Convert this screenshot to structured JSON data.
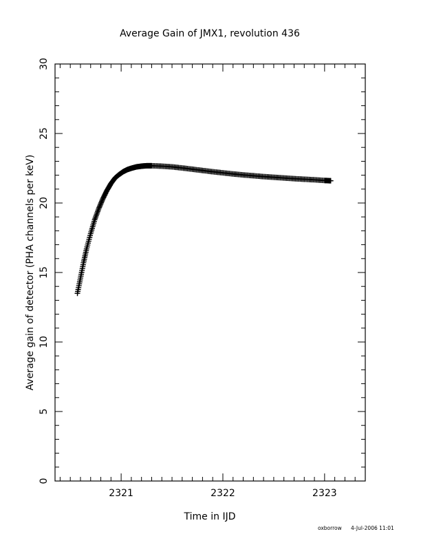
{
  "chart_data": {
    "type": "scatter",
    "title": "Average Gain of JMX1, revolution 436",
    "xlabel": "Time in IJD",
    "ylabel": "Average gain of detector (PHA channels per keV)",
    "xlim": [
      2320.35,
      2323.4
    ],
    "ylim": [
      0,
      30
    ],
    "x_ticks": [
      2321,
      2322,
      2323
    ],
    "y_ticks": [
      0,
      5,
      10,
      15,
      20,
      25,
      30
    ],
    "grid": false,
    "marker": "plus",
    "series": [
      {
        "x": [
          2320.57,
          2320.6,
          2320.63,
          2320.66,
          2320.7,
          2320.74,
          2320.78,
          2320.82,
          2320.86,
          2320.9,
          2320.94,
          2320.98,
          2321.02,
          2321.06,
          2321.1,
          2321.15,
          2321.2,
          2321.25,
          2321.3,
          2321.4,
          2321.5,
          2321.6,
          2321.7,
          2321.8,
          2321.9,
          2322.0,
          2322.1,
          2322.2,
          2322.3,
          2322.4,
          2322.5,
          2322.6,
          2322.7,
          2322.8,
          2322.9,
          2323.0,
          2323.06
        ],
        "y": [
          13.5,
          14.6,
          15.7,
          16.7,
          17.8,
          18.8,
          19.6,
          20.3,
          20.9,
          21.4,
          21.8,
          22.05,
          22.25,
          22.4,
          22.5,
          22.6,
          22.65,
          22.68,
          22.68,
          22.65,
          22.6,
          22.52,
          22.43,
          22.34,
          22.25,
          22.17,
          22.09,
          22.02,
          21.96,
          21.9,
          21.85,
          21.8,
          21.75,
          21.71,
          21.67,
          21.62,
          21.6
        ]
      }
    ]
  },
  "footer": {
    "user": "oxborrow",
    "timestamp": "4-Jul-2006 11:01"
  }
}
